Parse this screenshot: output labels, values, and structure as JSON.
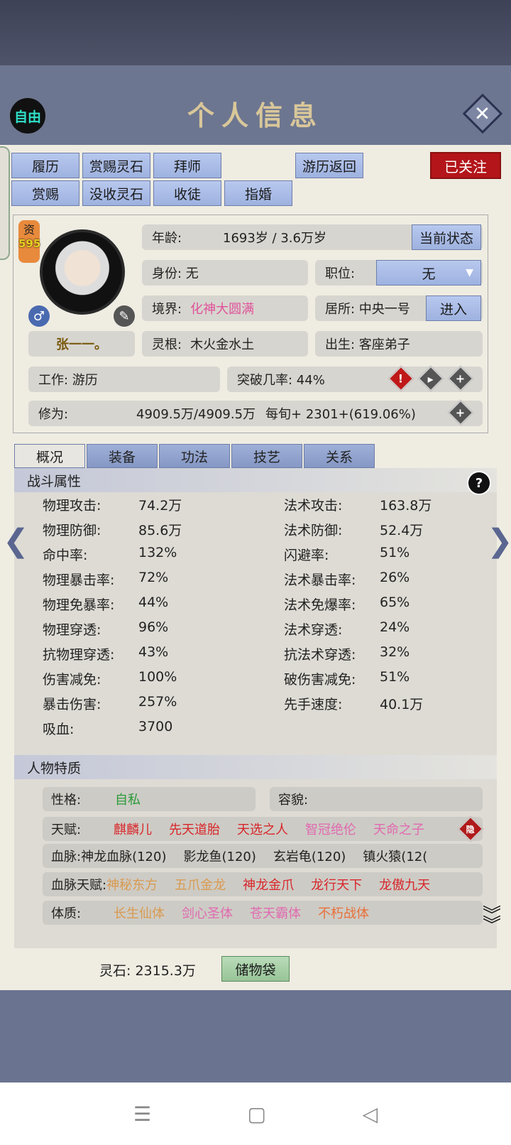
{
  "header": {
    "title": "个人信息",
    "free_label": "自由",
    "close_icon": "close-icon"
  },
  "actions": {
    "row1": [
      "履历",
      "赏赐灵石",
      "拜师"
    ],
    "row2": [
      "赏赐",
      "没收灵石",
      "收徒",
      "指婚"
    ],
    "return": "游历返回",
    "followed": "已关注"
  },
  "profile": {
    "zi_label": "资",
    "zi_value": "595",
    "name": "张一一。",
    "age_label": "年龄:",
    "age_value": "1693岁 / 3.6万岁",
    "status_btn": "当前状态",
    "identity": "身份:  无",
    "position_label": "职位:",
    "position_value": "无",
    "realm_label": "境界:",
    "realm_value": "化神大圆满",
    "residence": "居所: 中央一号",
    "enter_btn": "进入",
    "root_label": "灵根:",
    "root_value": "木火金水土",
    "origin": "出生:  客座弟子",
    "work": "工作: 游历",
    "breakthrough": "突破几率:  44%",
    "cultivation_label": "修为:",
    "cultivation_value": "4909.5万/4909.5万",
    "per_turn": "每旬+  2301+(619.06%)"
  },
  "tabs": [
    "概况",
    "装备",
    "功法",
    "技艺",
    "关系"
  ],
  "combat": {
    "title": "战斗属性",
    "left": [
      [
        "物理攻击:",
        "74.2万"
      ],
      [
        "物理防御:",
        "85.6万"
      ],
      [
        "命中率:",
        "132%"
      ],
      [
        "物理暴击率:",
        "72%"
      ],
      [
        "物理免暴率:",
        "44%"
      ],
      [
        "物理穿透:",
        "96%"
      ],
      [
        "抗物理穿透:",
        "43%"
      ],
      [
        "伤害减免:",
        "100%"
      ],
      [
        "暴击伤害:",
        "257%"
      ],
      [
        "吸血:",
        "3700"
      ]
    ],
    "right": [
      [
        "法术攻击:",
        "163.8万"
      ],
      [
        "法术防御:",
        "52.4万"
      ],
      [
        "闪避率:",
        "51%"
      ],
      [
        "法术暴击率:",
        "26%"
      ],
      [
        "法术免爆率:",
        "65%"
      ],
      [
        "法术穿透:",
        "24%"
      ],
      [
        "抗法术穿透:",
        "32%"
      ],
      [
        "破伤害减免:",
        "51%"
      ],
      [
        "先手速度:",
        "40.1万"
      ]
    ]
  },
  "traits": {
    "title": "人物特质",
    "personality_label": "性格:",
    "personality": "自私",
    "looks_label": "容貌:",
    "talent_label": "天赋:",
    "talents": [
      {
        "t": "麒麟儿",
        "c": "#d8262a"
      },
      {
        "t": "先天道胎",
        "c": "#d8262a"
      },
      {
        "t": "天选之人",
        "c": "#d8262a"
      },
      {
        "t": "智冠绝伦",
        "c": "#e06ab0"
      },
      {
        "t": "天命之子",
        "c": "#e06ab0"
      }
    ],
    "hidden": "隐",
    "blood_label": "血脉:",
    "bloods": [
      "神龙血脉(120)",
      "影龙鱼(120)",
      "玄岩龟(120)",
      "镇火猿(12("
    ],
    "blood_talent_label": "血脉天赋:",
    "blood_talents": [
      {
        "t": "神秘东方",
        "c": "#d99a50"
      },
      {
        "t": "五爪金龙",
        "c": "#d99a50"
      },
      {
        "t": "神龙金爪",
        "c": "#d8262a"
      },
      {
        "t": "龙行天下",
        "c": "#d8262a"
      },
      {
        "t": "龙傲九天",
        "c": "#d8262a"
      }
    ],
    "body_label": "体质:",
    "bodies": [
      {
        "t": "长生仙体",
        "c": "#d99a50"
      },
      {
        "t": "剑心圣体",
        "c": "#e06ab0"
      },
      {
        "t": "苍天霸体",
        "c": "#e06ab0"
      },
      {
        "t": "不朽战体",
        "c": "#e8703a"
      }
    ]
  },
  "footer": {
    "spirit_stone": "灵石: 2315.3万",
    "bag": "储物袋"
  },
  "navbar": {
    "menu": "☰",
    "home": "▢",
    "back": "◁"
  }
}
